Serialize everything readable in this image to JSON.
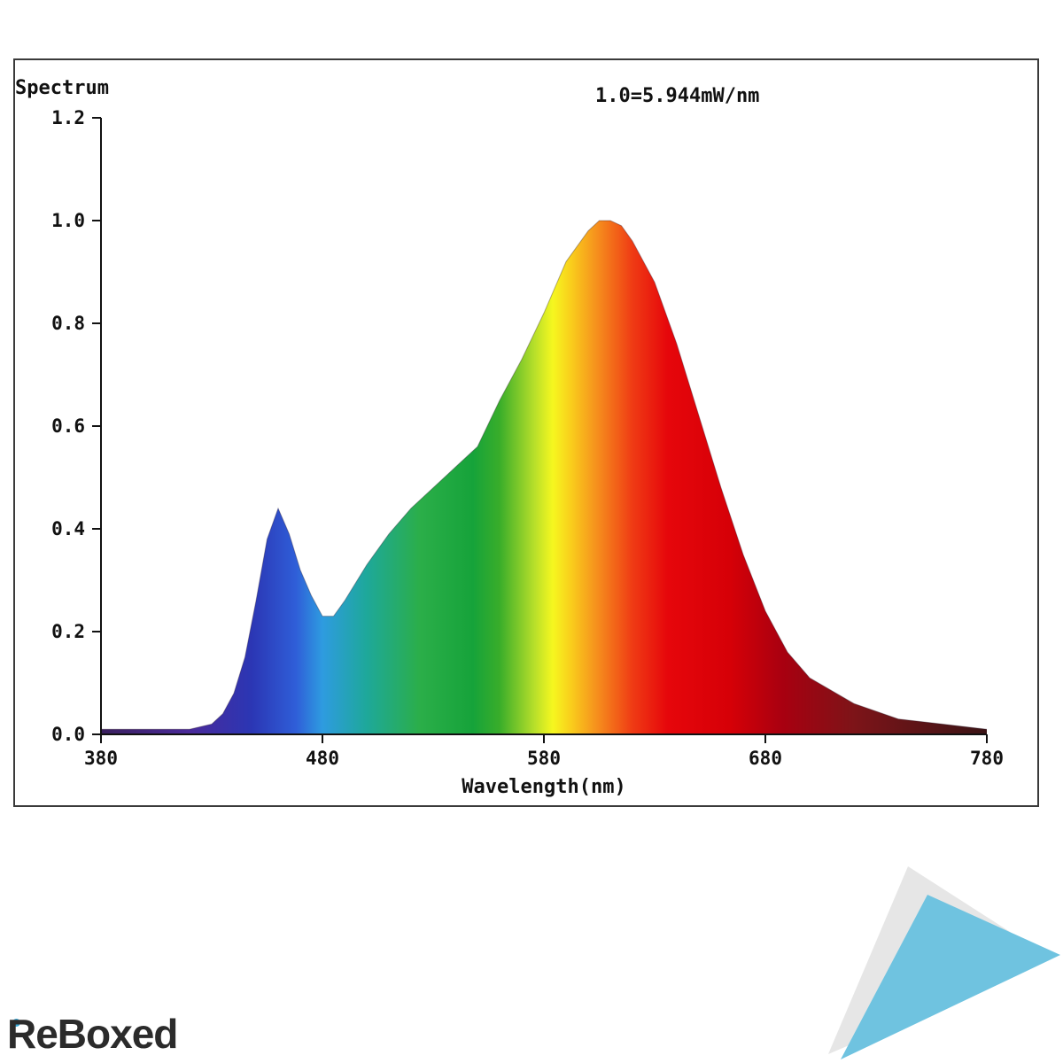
{
  "chart_data": {
    "type": "area",
    "title": "Spectrum",
    "subtitle": "1.0=5.944mW/nm",
    "xlabel": "Wavelength(nm)",
    "ylabel": "",
    "xlim": [
      380,
      780
    ],
    "ylim": [
      0.0,
      1.2
    ],
    "x_ticks": [
      "380",
      "480",
      "580",
      "680",
      "780"
    ],
    "y_ticks": [
      "0.0",
      "0.2",
      "0.4",
      "0.6",
      "0.8",
      "1.0",
      "1.2"
    ],
    "grid": false,
    "legend": "none",
    "x": [
      380,
      390,
      400,
      410,
      420,
      430,
      435,
      440,
      445,
      450,
      455,
      460,
      465,
      470,
      475,
      480,
      485,
      490,
      500,
      510,
      520,
      530,
      540,
      550,
      560,
      570,
      580,
      590,
      600,
      605,
      610,
      615,
      620,
      630,
      640,
      650,
      660,
      670,
      680,
      690,
      700,
      720,
      740,
      760,
      780
    ],
    "y": [
      0.01,
      0.01,
      0.01,
      0.01,
      0.01,
      0.02,
      0.04,
      0.08,
      0.15,
      0.26,
      0.38,
      0.44,
      0.39,
      0.32,
      0.27,
      0.23,
      0.23,
      0.26,
      0.33,
      0.39,
      0.44,
      0.48,
      0.52,
      0.56,
      0.65,
      0.73,
      0.82,
      0.92,
      0.98,
      1.0,
      1.0,
      0.99,
      0.96,
      0.88,
      0.76,
      0.62,
      0.48,
      0.35,
      0.24,
      0.16,
      0.11,
      0.06,
      0.03,
      0.02,
      0.01
    ]
  },
  "watermark": {
    "text": "ReBoxed",
    "accent_color": "#36a9d8"
  }
}
